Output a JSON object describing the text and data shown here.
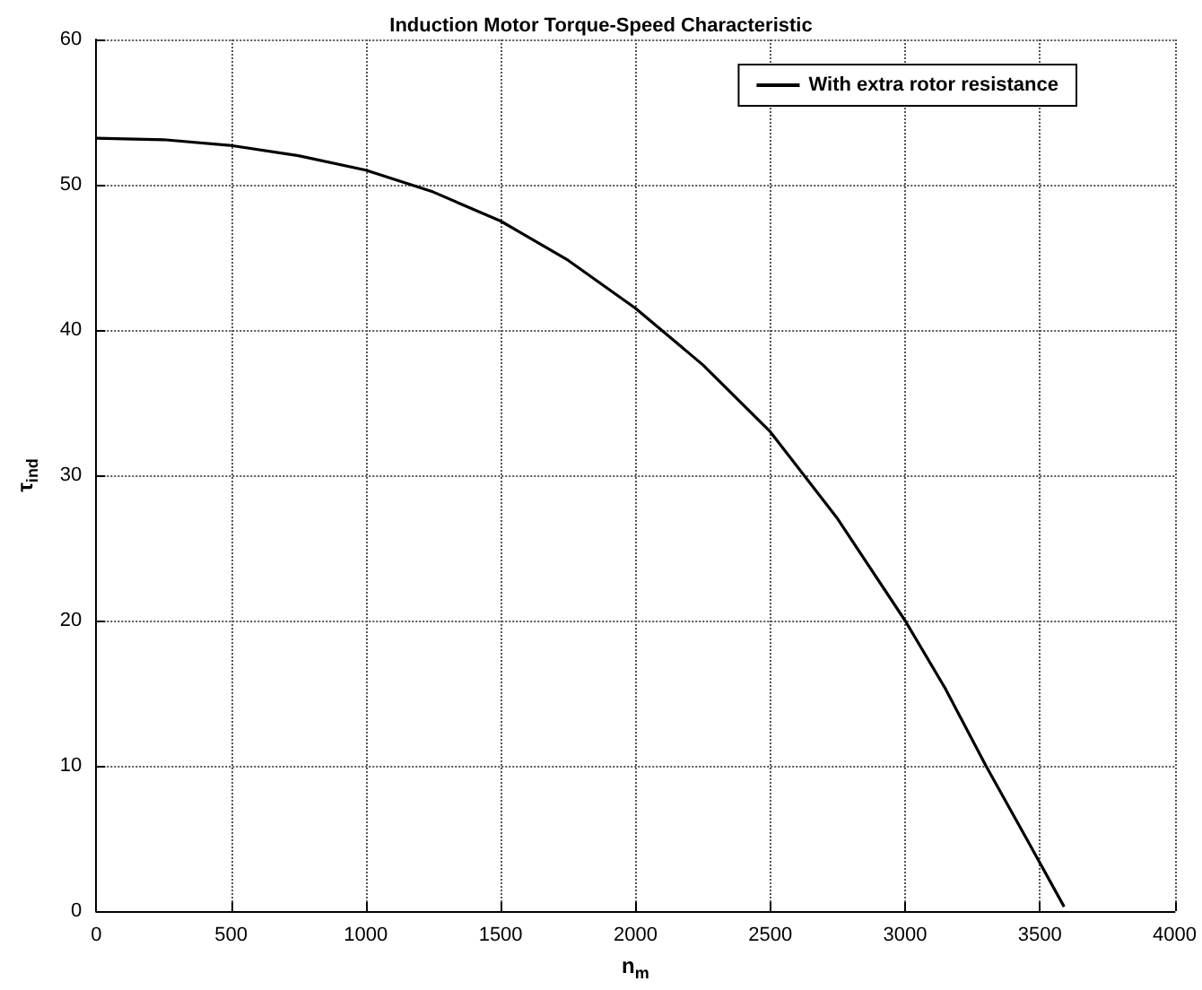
{
  "chart_data": {
    "type": "line",
    "title": "Induction Motor Torque-Speed Characteristic",
    "xlabel": "n$_{m}$",
    "ylabel": "τ$_{ind}$",
    "x": [
      0,
      250,
      500,
      750,
      1000,
      1250,
      1500,
      1750,
      2000,
      2250,
      2500,
      2750,
      3000,
      3150,
      3300,
      3450,
      3590
    ],
    "series": [
      {
        "name": "With extra rotor resistance",
        "color": "#000000",
        "values": [
          53.2,
          53.1,
          52.7,
          52,
          51,
          49.5,
          47.5,
          44.8,
          41.5,
          37.6,
          33,
          27,
          20,
          15.3,
          10,
          5,
          0.3
        ]
      }
    ],
    "xlim": [
      0,
      4000
    ],
    "xticks": [
      0,
      500,
      1000,
      1500,
      2000,
      2500,
      3000,
      3500,
      4000
    ],
    "ylim": [
      0,
      60
    ],
    "yticks": [
      0,
      10,
      20,
      30,
      40,
      50,
      60
    ],
    "grid": true,
    "legend": "top right",
    "marker": "none",
    "line_style": "solid"
  }
}
